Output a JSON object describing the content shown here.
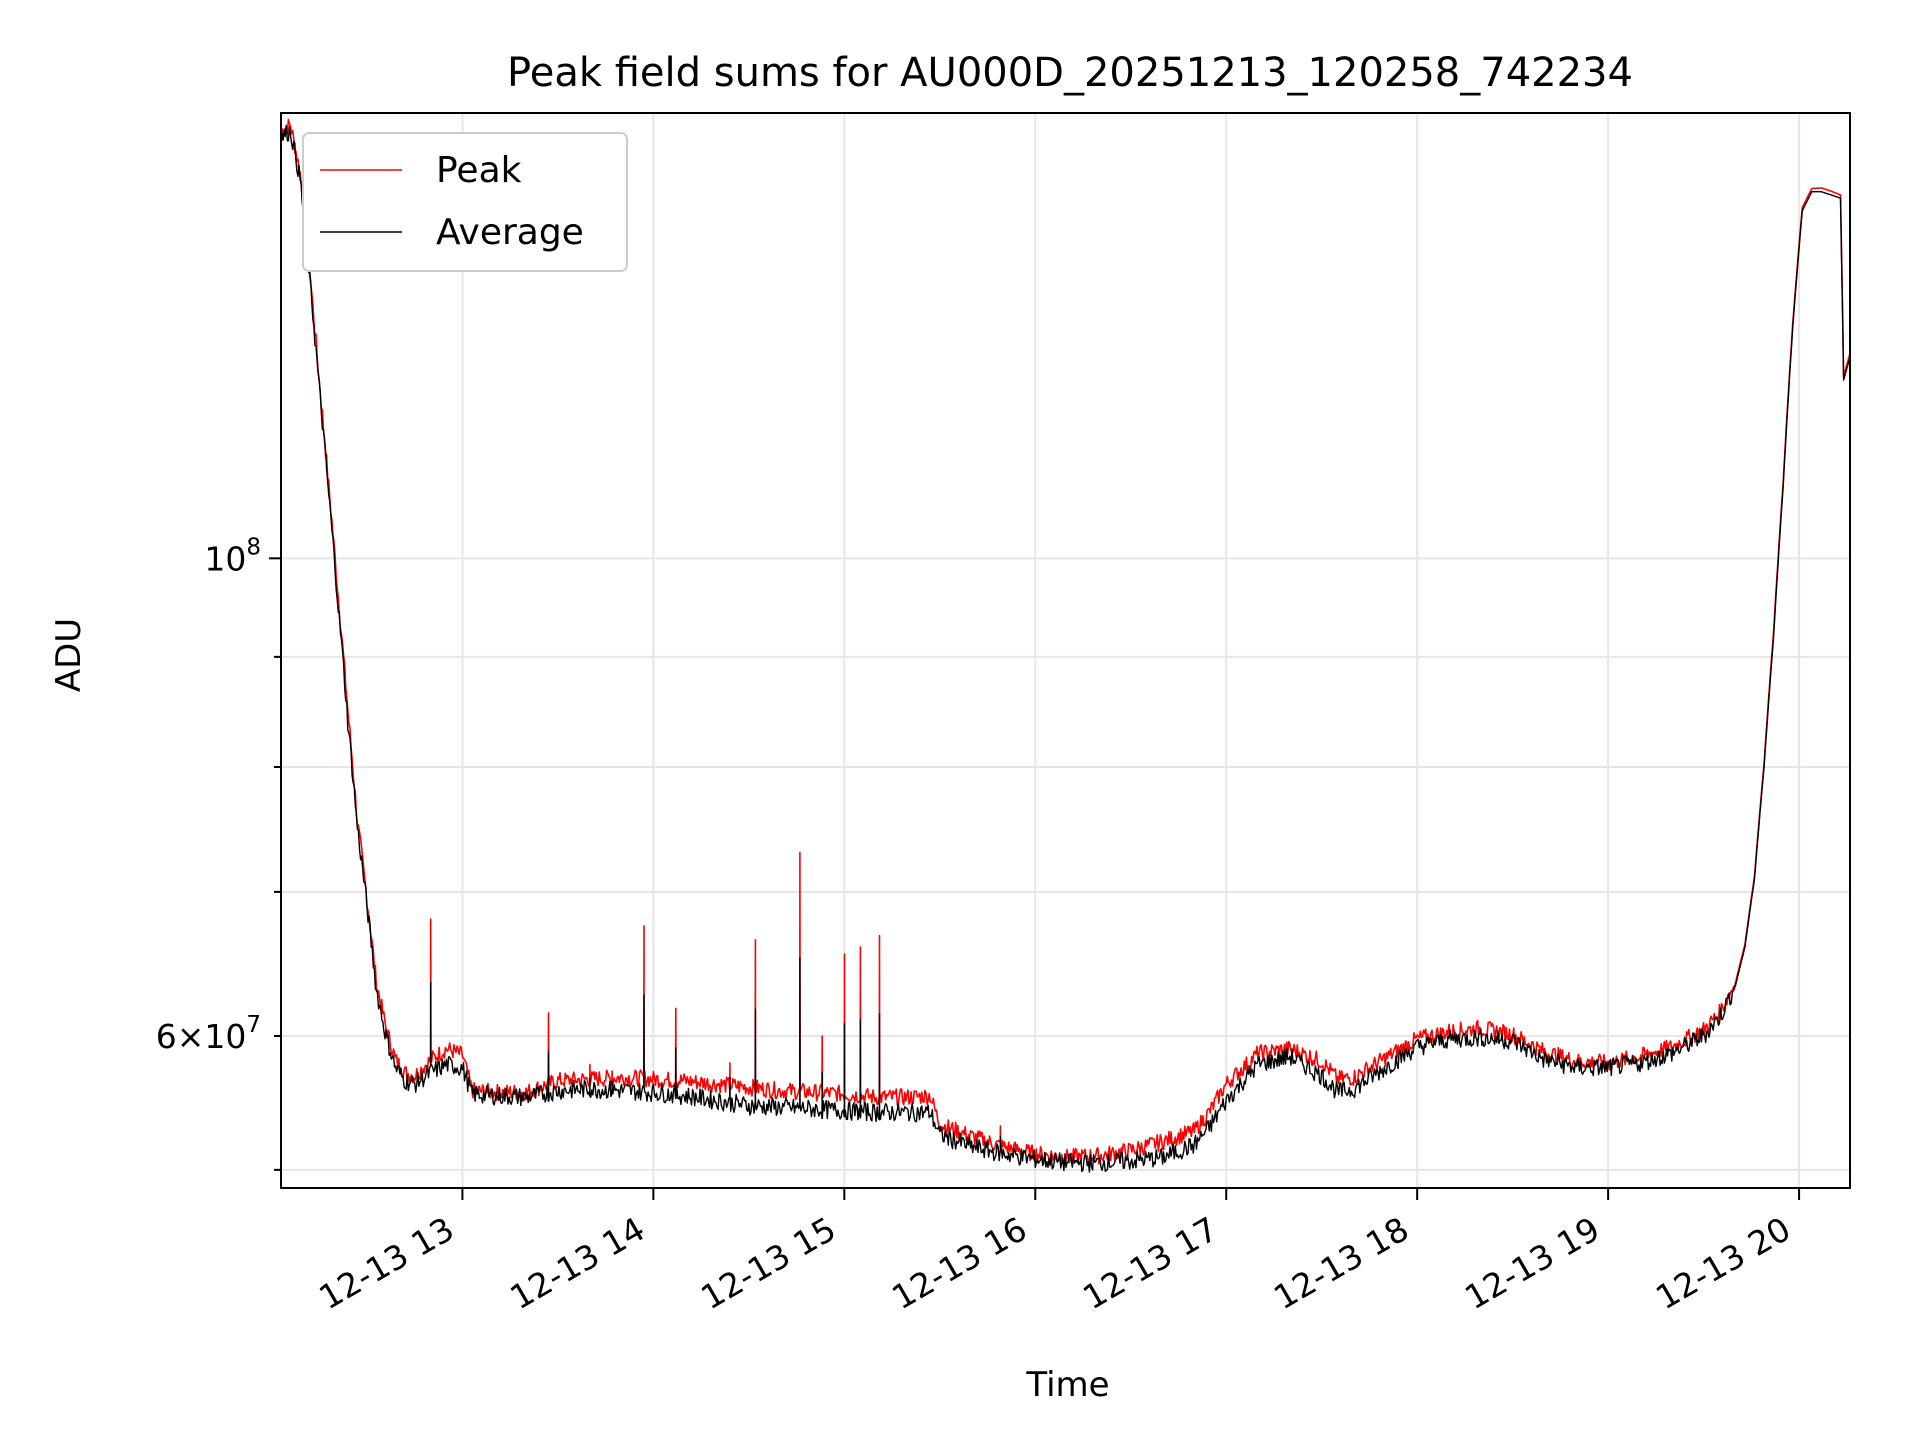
{
  "chart_data": {
    "type": "line",
    "title": "Peak field sums for AU000D_20251213_120258_742234",
    "xlabel": "Time",
    "ylabel": "ADU",
    "yscale": "log",
    "xlim": [
      "12-13 12:03",
      "12-13 20:16"
    ],
    "ylim": [
      51000000,
      161000000
    ],
    "grid": true,
    "legend": {
      "placement": "upper-left",
      "entries": [
        {
          "name": "Peak",
          "color": "#ff0000"
        },
        {
          "name": "Average",
          "color": "#000000"
        }
      ]
    },
    "x_ticks": [
      {
        "value": "12-13 13:00",
        "label": "12-13 13"
      },
      {
        "value": "12-13 14:00",
        "label": "12-13 14"
      },
      {
        "value": "12-13 15:00",
        "label": "12-13 15"
      },
      {
        "value": "12-13 16:00",
        "label": "12-13 16"
      },
      {
        "value": "12-13 17:00",
        "label": "12-13 17"
      },
      {
        "value": "12-13 18:00",
        "label": "12-13 18"
      },
      {
        "value": "12-13 19:00",
        "label": "12-13 19"
      },
      {
        "value": "12-13 20:00",
        "label": "12-13 20"
      }
    ],
    "y_ticks_major": [
      {
        "value": 100000000,
        "label_base": "10",
        "label_exp": "8"
      }
    ],
    "y_ticks_minor": [
      {
        "value": 60000000,
        "label_coef": "6",
        "label_base": "10",
        "label_exp": "7"
      },
      {
        "value": 70000000
      },
      {
        "value": 80000000
      },
      {
        "value": 90000000
      },
      {
        "value": 52000000
      }
    ],
    "series": [
      {
        "name": "Average",
        "color": "#000000",
        "x": [
          "12-13 12:03",
          "12-13 12:06",
          "12-13 12:09",
          "12-13 12:12",
          "12-13 12:15",
          "12-13 12:18",
          "12-13 12:21",
          "12-13 12:24",
          "12-13 12:27",
          "12-13 12:30",
          "12-13 12:33",
          "12-13 12:36",
          "12-13 12:39",
          "12-13 12:42",
          "12-13 12:45",
          "12-13 12:50",
          "12-13 12:55",
          "12-13 13:00",
          "12-13 13:03",
          "12-13 13:10",
          "12-13 13:20",
          "12-13 13:30",
          "12-13 13:40",
          "12-13 13:50",
          "12-13 14:00",
          "12-13 14:10",
          "12-13 14:20",
          "12-13 14:30",
          "12-13 14:40",
          "12-13 14:50",
          "12-13 15:00",
          "12-13 15:10",
          "12-13 15:20",
          "12-13 15:27",
          "12-13 15:30",
          "12-13 15:40",
          "12-13 15:50",
          "12-13 16:00",
          "12-13 16:10",
          "12-13 16:20",
          "12-13 16:30",
          "12-13 16:40",
          "12-13 16:50",
          "12-13 16:55",
          "12-13 17:00",
          "12-13 17:10",
          "12-13 17:20",
          "12-13 17:30",
          "12-13 17:35",
          "12-13 17:40",
          "12-13 17:50",
          "12-13 18:00",
          "12-13 18:10",
          "12-13 18:20",
          "12-13 18:30",
          "12-13 18:40",
          "12-13 18:50",
          "12-13 19:00",
          "12-13 19:10",
          "12-13 19:20",
          "12-13 19:30",
          "12-13 19:35",
          "12-13 19:40",
          "12-13 19:43",
          "12-13 19:46",
          "12-13 19:49",
          "12-13 19:52",
          "12-13 19:55",
          "12-13 19:58",
          "12-13 20:01",
          "12-13 20:04",
          "12-13 20:07",
          "12-13 20:10",
          "12-13 20:13",
          "12-13 20:14",
          "12-13 20:16"
        ],
        "values": [
          157000000,
          158000000,
          150000000,
          135000000,
          120000000,
          107000000,
          95000000,
          84000000,
          75000000,
          69000000,
          63000000,
          60000000,
          58000000,
          57200000,
          57000000,
          57700000,
          58200000,
          58000000,
          56400000,
          56300000,
          56200000,
          56600000,
          56700000,
          56600000,
          56500000,
          56300000,
          56000000,
          55700000,
          55600000,
          55500000,
          55400000,
          55300000,
          55300000,
          55300000,
          54000000,
          53300000,
          52900000,
          52600000,
          52400000,
          52400000,
          52500000,
          52700000,
          53400000,
          54500000,
          56000000,
          58200000,
          58700000,
          57500000,
          56500000,
          56700000,
          58000000,
          59300000,
          59800000,
          59900000,
          59700000,
          58500000,
          58000000,
          58000000,
          58300000,
          58900000,
          60000000,
          61200000,
          63300000,
          66000000,
          71000000,
          80000000,
          92000000,
          108000000,
          128000000,
          145000000,
          148000000,
          148000000,
          147500000,
          147000000,
          121000000,
          124000000
        ]
      },
      {
        "name": "Peak",
        "color": "#ff0000",
        "x": [
          "12-13 12:03",
          "12-13 12:06",
          "12-13 12:09",
          "12-13 12:12",
          "12-13 12:15",
          "12-13 12:18",
          "12-13 12:21",
          "12-13 12:24",
          "12-13 12:27",
          "12-13 12:30",
          "12-13 12:33",
          "12-13 12:36",
          "12-13 12:39",
          "12-13 12:42",
          "12-13 12:45",
          "12-13 12:50",
          "12-13 12:55",
          "12-13 13:00",
          "12-13 13:03",
          "12-13 13:10",
          "12-13 13:20",
          "12-13 13:30",
          "12-13 13:40",
          "12-13 13:50",
          "12-13 14:00",
          "12-13 14:10",
          "12-13 14:20",
          "12-13 14:30",
          "12-13 14:40",
          "12-13 14:50",
          "12-13 15:00",
          "12-13 15:10",
          "12-13 15:20",
          "12-13 15:27",
          "12-13 15:30",
          "12-13 15:40",
          "12-13 15:50",
          "12-13 16:00",
          "12-13 16:10",
          "12-13 16:20",
          "12-13 16:30",
          "12-13 16:40",
          "12-13 16:50",
          "12-13 16:55",
          "12-13 17:00",
          "12-13 17:10",
          "12-13 17:20",
          "12-13 17:30",
          "12-13 17:35",
          "12-13 17:40",
          "12-13 17:50",
          "12-13 18:00",
          "12-13 18:10",
          "12-13 18:20",
          "12-13 18:30",
          "12-13 18:40",
          "12-13 18:50",
          "12-13 19:00",
          "12-13 19:10",
          "12-13 19:20",
          "12-13 19:30",
          "12-13 19:35",
          "12-13 19:40",
          "12-13 19:43",
          "12-13 19:46",
          "12-13 19:49",
          "12-13 19:52",
          "12-13 19:55",
          "12-13 19:58",
          "12-13 20:01",
          "12-13 20:04",
          "12-13 20:07",
          "12-13 20:10",
          "12-13 20:13",
          "12-13 20:14",
          "12-13 20:16"
        ],
        "values": [
          158000000,
          159000000,
          151000000,
          136000000,
          121000000,
          108000000,
          96000000,
          85000000,
          75500000,
          69500000,
          63500000,
          60500000,
          58500000,
          57700000,
          57500000,
          58500000,
          59200000,
          58800000,
          56600000,
          56500000,
          56500000,
          57200000,
          57300000,
          57400000,
          57300000,
          57200000,
          57000000,
          56800000,
          56600000,
          56500000,
          56400000,
          56200000,
          56200000,
          56300000,
          54600000,
          53900000,
          53300000,
          52900000,
          52700000,
          52800000,
          53100000,
          53600000,
          54200000,
          55400000,
          57000000,
          58900000,
          59200000,
          58400000,
          57300000,
          57400000,
          58600000,
          59800000,
          60300000,
          60500000,
          60100000,
          59000000,
          58400000,
          58300000,
          58700000,
          59300000,
          60400000,
          61500000,
          63500000,
          66200000,
          71200000,
          80300000,
          92500000,
          108500000,
          128500000,
          145500000,
          148500000,
          148600000,
          148100000,
          147500000,
          121500000,
          124500000
        ]
      }
    ],
    "peak_spikes": [
      {
        "x": "12-13 12:50",
        "value": 68000000
      },
      {
        "x": "12-13 13:27",
        "value": 61500000
      },
      {
        "x": "12-13 13:40",
        "value": 58200000
      },
      {
        "x": "12-13 13:47",
        "value": 57800000
      },
      {
        "x": "12-13 13:57",
        "value": 67500000
      },
      {
        "x": "12-13 14:07",
        "value": 61800000
      },
      {
        "x": "12-13 14:24",
        "value": 58300000
      },
      {
        "x": "12-13 14:32",
        "value": 66500000
      },
      {
        "x": "12-13 14:46",
        "value": 73000000
      },
      {
        "x": "12-13 14:53",
        "value": 60000000
      },
      {
        "x": "12-13 15:00",
        "value": 65500000
      },
      {
        "x": "12-13 15:05",
        "value": 66000000
      },
      {
        "x": "12-13 15:11",
        "value": 66800000
      },
      {
        "x": "12-13 15:49",
        "value": 54500000
      }
    ]
  }
}
